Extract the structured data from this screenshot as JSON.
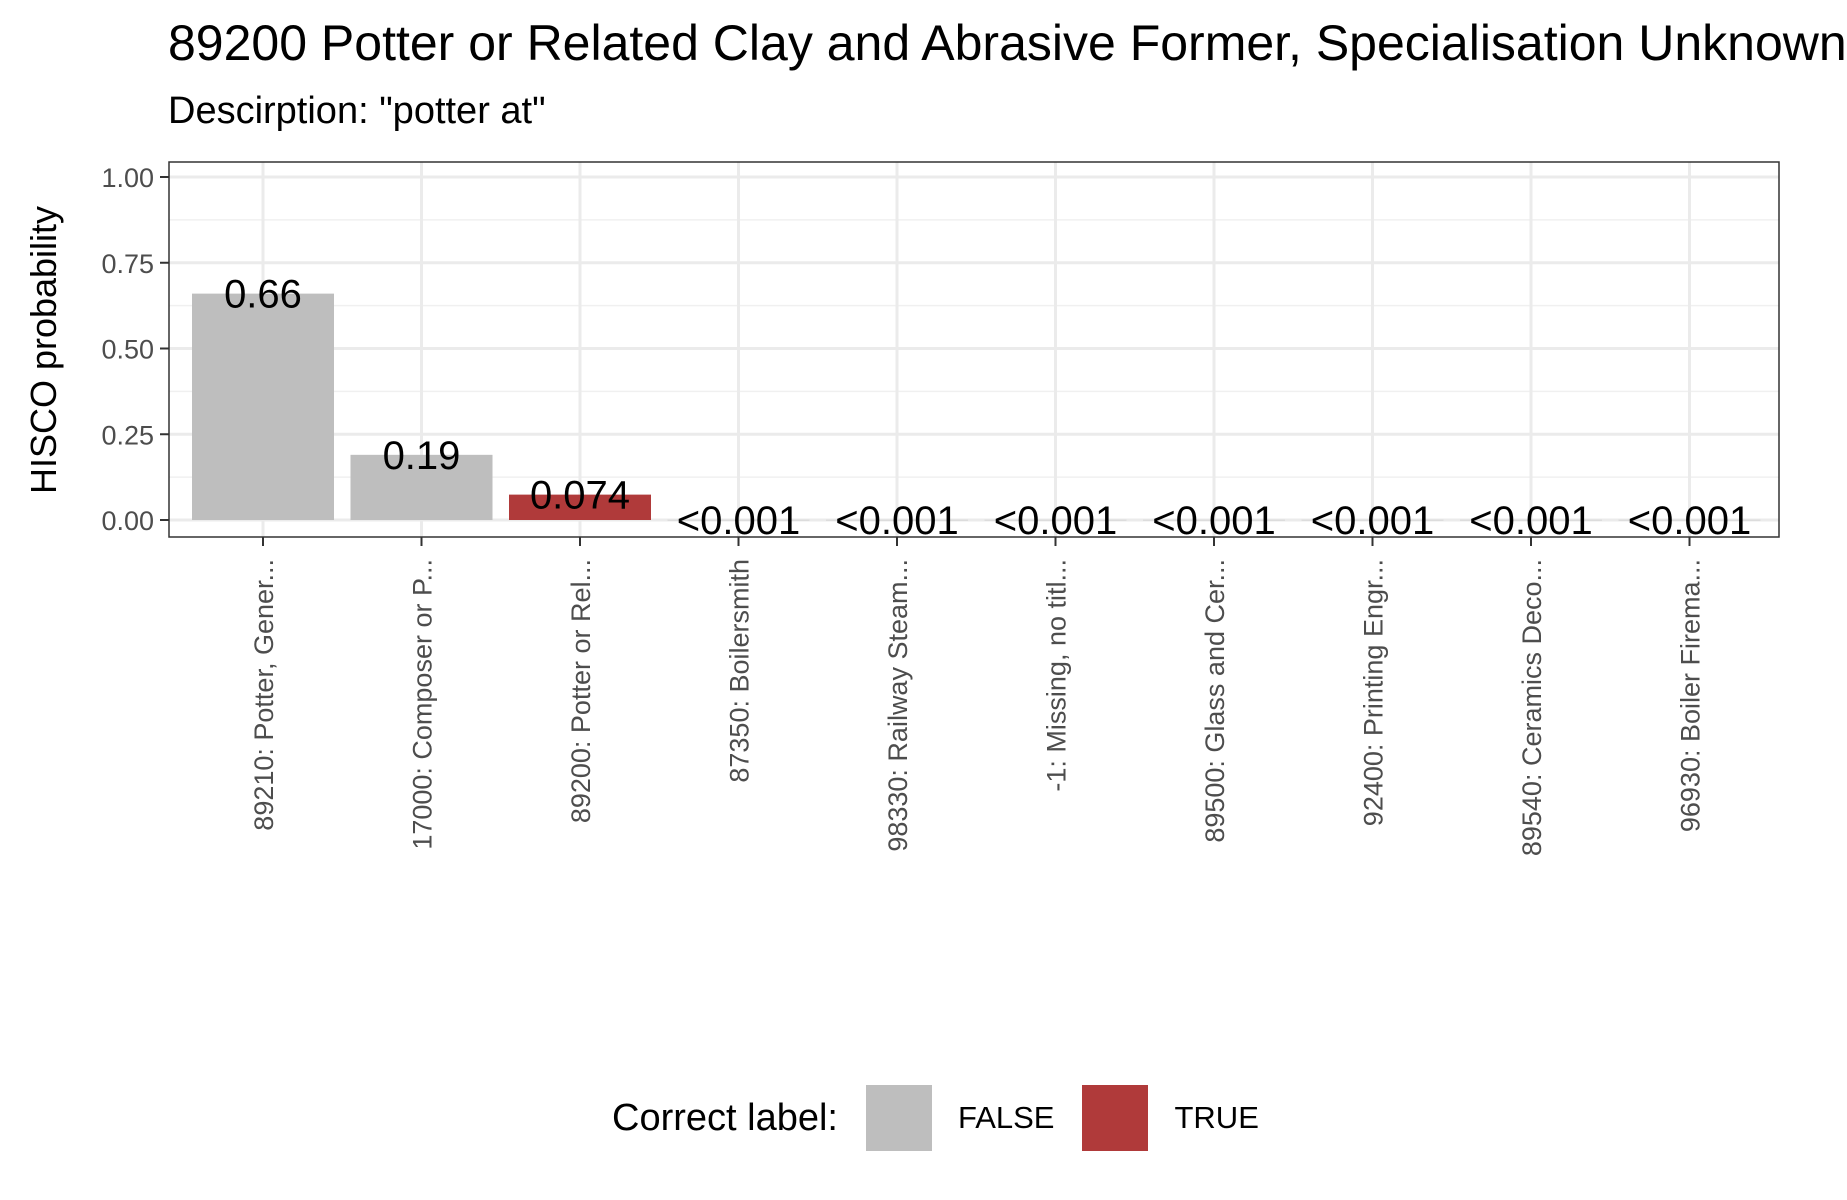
{
  "chart_data": {
    "type": "bar",
    "title": "89200 Potter or Related Clay and Abrasive Former, Specialisation Unknown",
    "subtitle": "Descirption: \"potter at\"",
    "xlabel": "",
    "ylabel": "HISCO probability",
    "ylim": [
      0,
      1.05
    ],
    "yticks": [
      0,
      0.25,
      0.5,
      0.75,
      1.0
    ],
    "ytick_labels": [
      "0.00",
      "0.25",
      "0.50",
      "0.75",
      "1.00"
    ],
    "categories": [
      "89210: Potter, Gener...",
      "17000: Composer or P...",
      "89200: Potter or Rel...",
      "87350: Boilersmith",
      "98330: Railway Steam...",
      "-1: Missing, no titl...",
      "89500: Glass and Cer...",
      "92400: Printing Engr...",
      "89540: Ceramics Deco...",
      "96930: Boiler Firema..."
    ],
    "values": [
      0.66,
      0.19,
      0.074,
      0.0005,
      0.0005,
      0.0005,
      0.0005,
      0.0005,
      0.0005,
      0.0005
    ],
    "value_labels": [
      "0.66",
      "0.19",
      "0.074",
      "<0.001",
      "<0.001",
      "<0.001",
      "<0.001",
      "<0.001",
      "<0.001",
      "<0.001"
    ],
    "correct": [
      false,
      false,
      true,
      false,
      false,
      false,
      false,
      false,
      false,
      false
    ],
    "grid": true,
    "legend": {
      "title": "Correct label:",
      "position": "bottom",
      "entries": [
        {
          "label": "FALSE",
          "color": "#bebebe"
        },
        {
          "label": "TRUE",
          "color": "#b03a3a"
        }
      ]
    }
  }
}
